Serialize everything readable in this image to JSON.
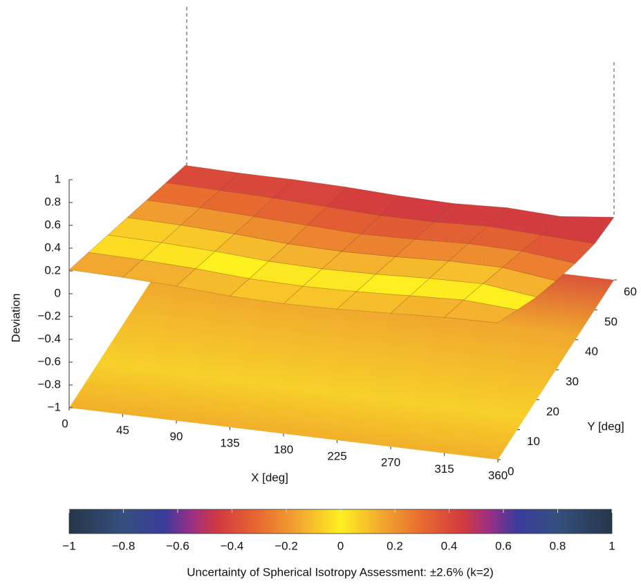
{
  "chart_data": {
    "type": "surface",
    "zlabel": "Deviation",
    "xlabel": "X [deg]",
    "ylabel": "Y [deg]",
    "caption": "Uncertainty of Spherical Isotropy Assessment: ±2.6% (k=2)",
    "xlim": [
      0,
      360
    ],
    "xticks": [
      0,
      45,
      90,
      135,
      180,
      225,
      270,
      315,
      360
    ],
    "ylim": [
      0,
      60
    ],
    "yticks": [
      0,
      10,
      20,
      30,
      40,
      50,
      60
    ],
    "zlim": [
      -1,
      1
    ],
    "zticks": [
      {
        "value": -1,
        "label": "−1"
      },
      {
        "value": -0.8,
        "label": "−0.8"
      },
      {
        "value": -0.6,
        "label": "−0.6"
      },
      {
        "value": -0.4,
        "label": "−0.4"
      },
      {
        "value": -0.2,
        "label": "−0.2"
      },
      0,
      0.2,
      0.4,
      0.6,
      0.8,
      1
    ],
    "z": [
      [
        0.21,
        0.2,
        0.18,
        0.15,
        0.14,
        0.15,
        0.17,
        0.19,
        0.2
      ],
      [
        0.1,
        0.09,
        0.07,
        0.04,
        0.03,
        0.04,
        0.06,
        0.08,
        0.05
      ],
      [
        -0.01,
        -0.02,
        -0.04,
        -0.07,
        -0.08,
        -0.07,
        -0.05,
        -0.04,
        -0.1
      ],
      [
        -0.12,
        -0.13,
        -0.15,
        -0.18,
        -0.19,
        -0.18,
        -0.16,
        -0.16,
        -0.22
      ],
      [
        -0.23,
        -0.24,
        -0.26,
        -0.28,
        -0.3,
        -0.29,
        -0.27,
        -0.28,
        -0.33
      ],
      [
        -0.34,
        -0.35,
        -0.36,
        -0.38,
        -0.4,
        -0.4,
        -0.38,
        -0.4,
        -0.42
      ],
      [
        -0.45,
        -0.46,
        -0.46,
        -0.47,
        -0.49,
        -0.5,
        -0.48,
        -0.5,
        -0.45
      ]
    ],
    "colormap": [
      [
        "-1",
        "#27364a"
      ],
      [
        "-0.8",
        "#34507e"
      ],
      [
        "-0.65",
        "#3a3c9c"
      ],
      [
        "-0.55",
        "#9a2f86"
      ],
      [
        "-0.45",
        "#d23a40"
      ],
      [
        "-0.3",
        "#e86a30"
      ],
      [
        "-0.15",
        "#f2a830"
      ],
      [
        "0",
        "#fff020"
      ],
      [
        "0.15",
        "#f2a830"
      ],
      [
        "0.3",
        "#e86a30"
      ],
      [
        "0.45",
        "#d23a40"
      ],
      [
        "0.55",
        "#9a2f86"
      ],
      [
        "0.65",
        "#3a3c9c"
      ],
      [
        "0.8",
        "#34507e"
      ],
      [
        "1",
        "#27364a"
      ]
    ],
    "clim": [
      -1,
      1
    ],
    "cticks": [
      {
        "value": -1,
        "label": "−1"
      },
      {
        "value": -0.8,
        "label": "−0.8"
      },
      {
        "value": -0.6,
        "label": "−0.6"
      },
      {
        "value": -0.4,
        "label": "−0.4"
      },
      {
        "value": -0.2,
        "label": "−0.2"
      },
      0,
      0.2,
      0.4,
      0.6,
      0.8,
      1
    ]
  }
}
